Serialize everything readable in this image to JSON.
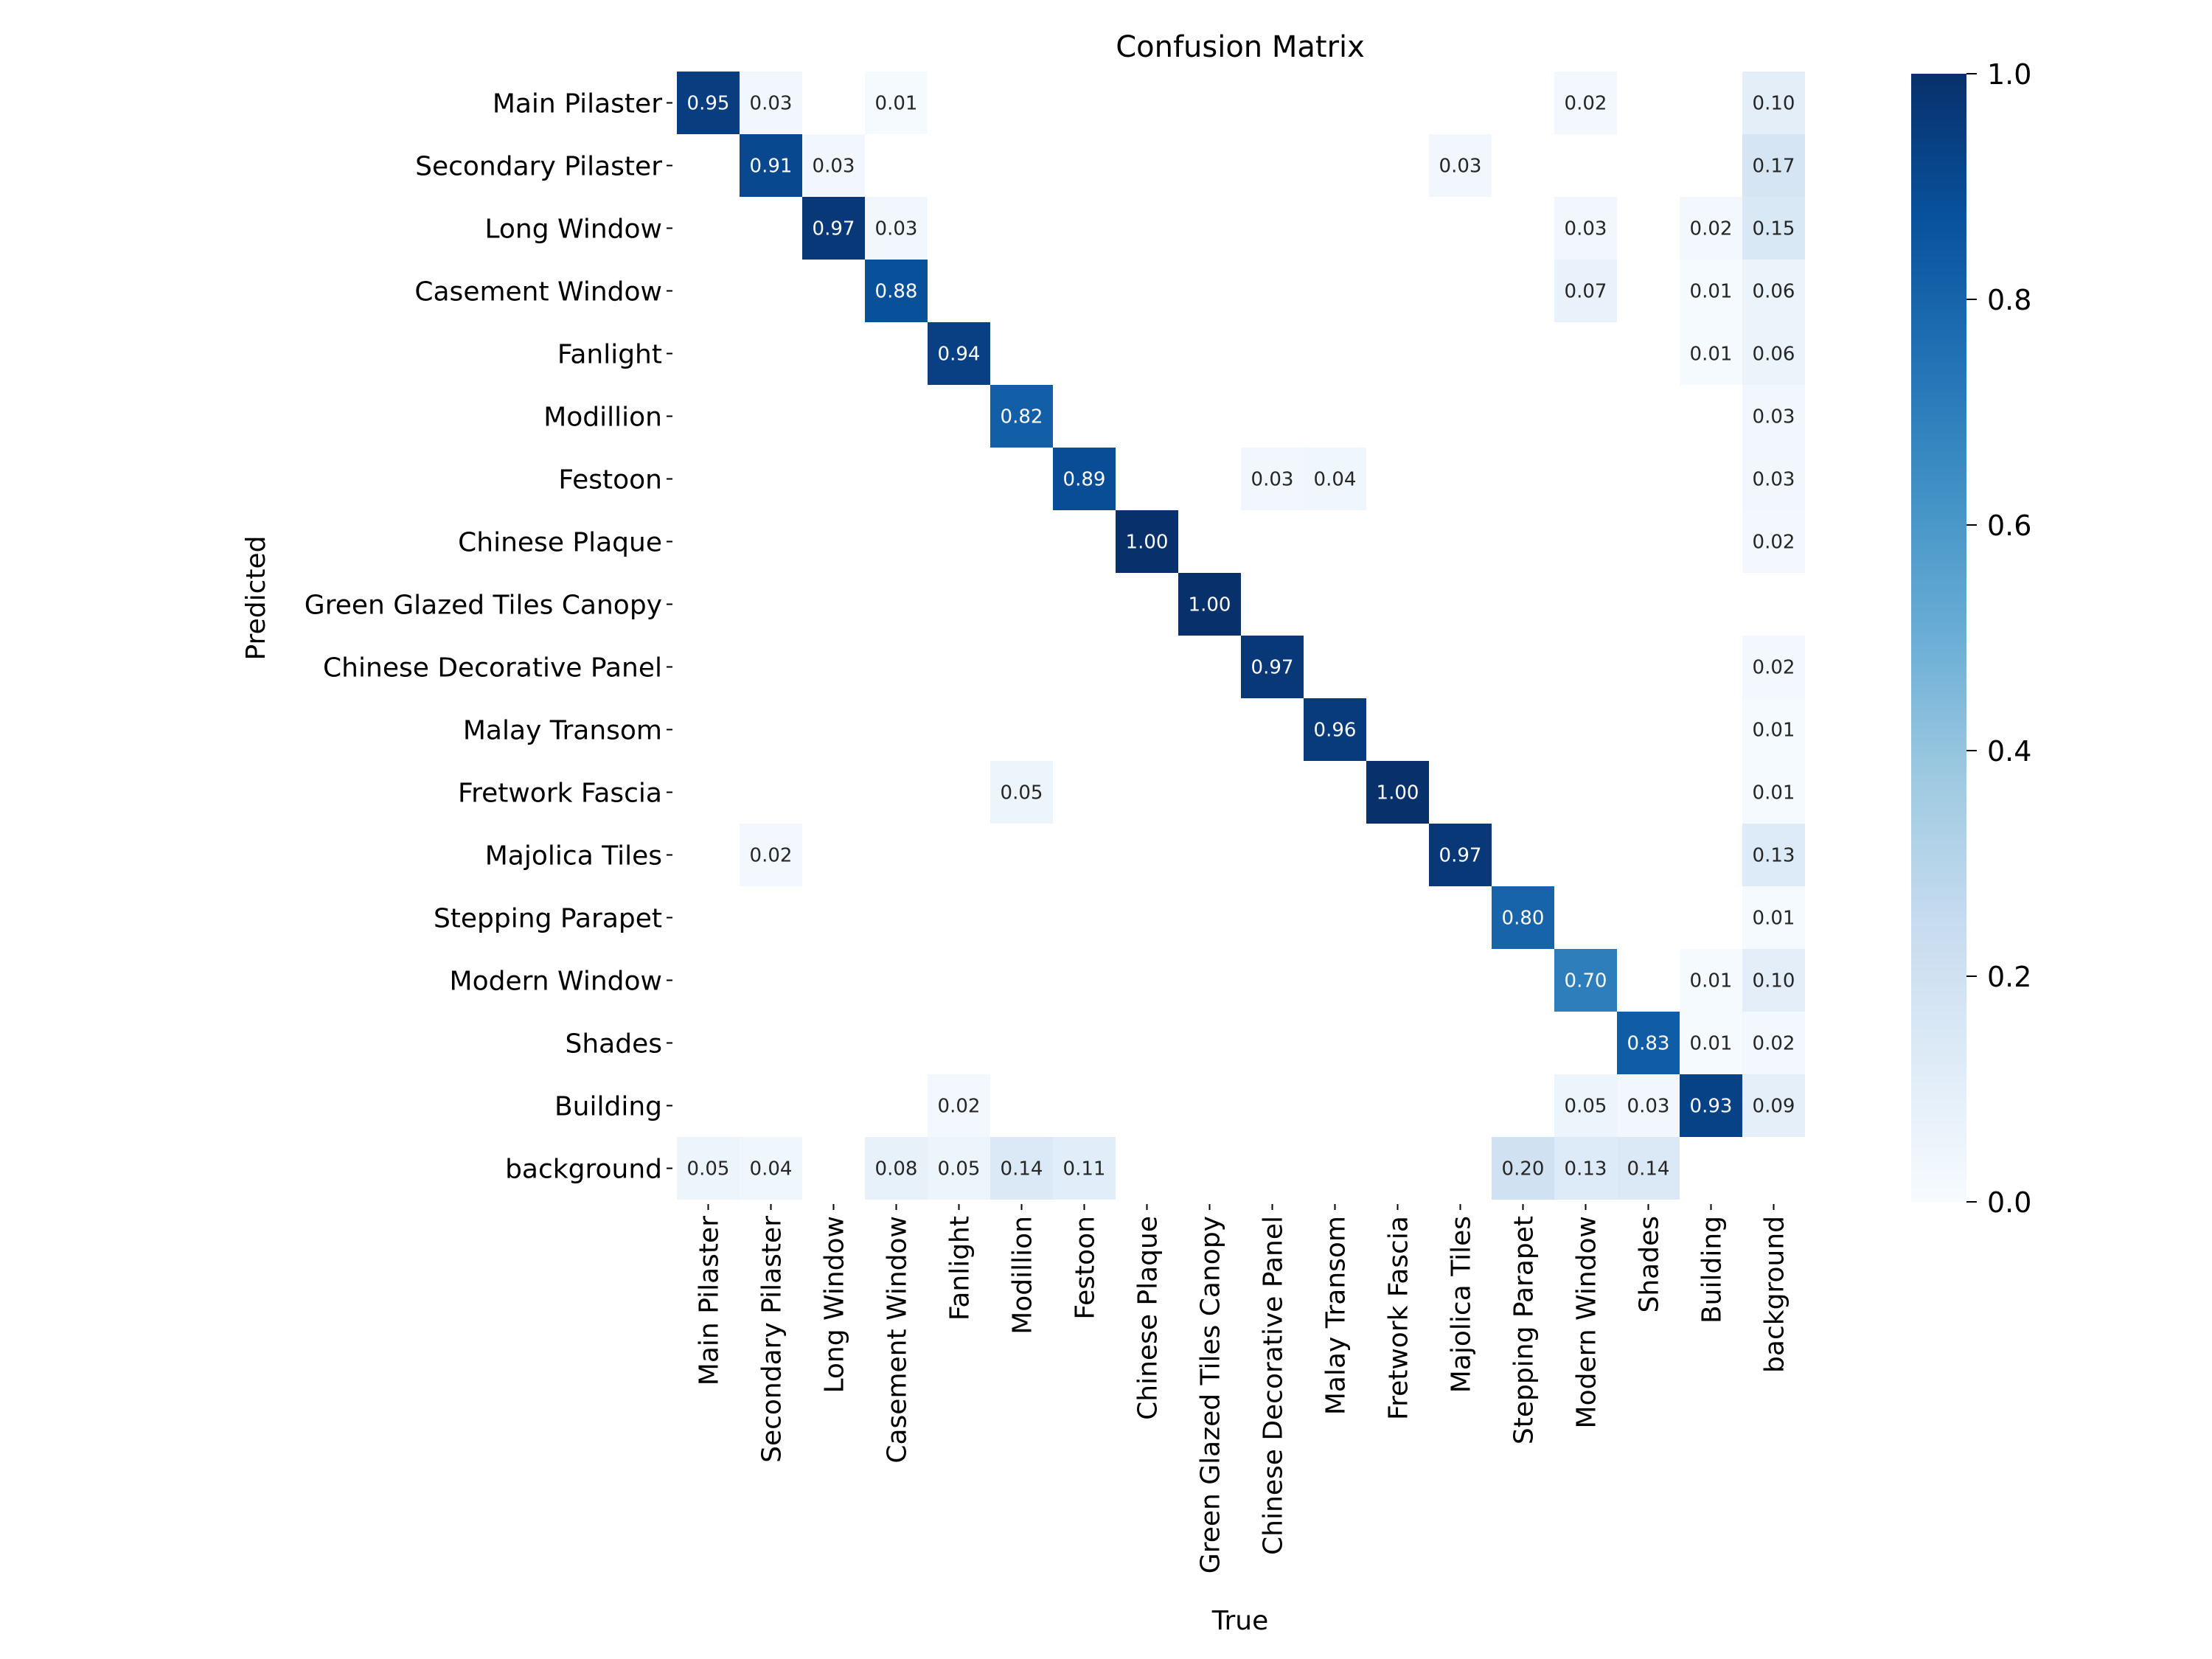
{
  "chart_data": {
    "type": "heatmap",
    "title": "Confusion Matrix",
    "xlabel": "True",
    "ylabel": "Predicted",
    "x_categories": [
      "Main Pilaster",
      "Secondary Pilaster",
      "Long Window",
      "Casement Window",
      "Fanlight",
      "Modillion",
      "Festoon",
      "Chinese Plaque",
      "Green Glazed Tiles Canopy",
      "Chinese Decorative Panel",
      "Malay Transom",
      "Fretwork Fascia",
      "Majolica Tiles",
      "Stepping Parapet",
      "Modern Window",
      "Shades",
      "Building",
      "background"
    ],
    "y_categories": [
      "Main Pilaster",
      "Secondary Pilaster",
      "Long Window",
      "Casement Window",
      "Fanlight",
      "Modillion",
      "Festoon",
      "Chinese Plaque",
      "Green Glazed Tiles Canopy",
      "Chinese Decorative Panel",
      "Malay Transom",
      "Fretwork Fascia",
      "Majolica Tiles",
      "Stepping Parapet",
      "Modern Window",
      "Shades",
      "Building",
      "background"
    ],
    "values": [
      [
        0.95,
        0.03,
        null,
        0.01,
        null,
        null,
        null,
        null,
        null,
        null,
        null,
        null,
        null,
        null,
        0.02,
        null,
        null,
        0.1
      ],
      [
        null,
        0.91,
        0.03,
        null,
        null,
        null,
        null,
        null,
        null,
        null,
        null,
        null,
        0.03,
        null,
        null,
        null,
        null,
        0.17
      ],
      [
        null,
        null,
        0.97,
        0.03,
        null,
        null,
        null,
        null,
        null,
        null,
        null,
        null,
        null,
        null,
        0.03,
        null,
        0.02,
        0.15
      ],
      [
        null,
        null,
        null,
        0.88,
        null,
        null,
        null,
        null,
        null,
        null,
        null,
        null,
        null,
        null,
        0.07,
        null,
        0.01,
        0.06
      ],
      [
        null,
        null,
        null,
        null,
        0.94,
        null,
        null,
        null,
        null,
        null,
        null,
        null,
        null,
        null,
        null,
        null,
        0.01,
        0.06
      ],
      [
        null,
        null,
        null,
        null,
        null,
        0.82,
        null,
        null,
        null,
        null,
        null,
        null,
        null,
        null,
        null,
        null,
        null,
        0.03
      ],
      [
        null,
        null,
        null,
        null,
        null,
        null,
        0.89,
        null,
        null,
        0.03,
        0.04,
        null,
        null,
        null,
        null,
        null,
        null,
        0.03
      ],
      [
        null,
        null,
        null,
        null,
        null,
        null,
        null,
        1.0,
        null,
        null,
        null,
        null,
        null,
        null,
        null,
        null,
        null,
        0.02
      ],
      [
        null,
        null,
        null,
        null,
        null,
        null,
        null,
        null,
        1.0,
        null,
        null,
        null,
        null,
        null,
        null,
        null,
        null,
        null
      ],
      [
        null,
        null,
        null,
        null,
        null,
        null,
        null,
        null,
        null,
        0.97,
        null,
        null,
        null,
        null,
        null,
        null,
        null,
        0.02
      ],
      [
        null,
        null,
        null,
        null,
        null,
        null,
        null,
        null,
        null,
        null,
        0.96,
        null,
        null,
        null,
        null,
        null,
        null,
        0.01
      ],
      [
        null,
        null,
        null,
        null,
        null,
        0.05,
        null,
        null,
        null,
        null,
        null,
        1.0,
        null,
        null,
        null,
        null,
        null,
        0.01
      ],
      [
        null,
        0.02,
        null,
        null,
        null,
        null,
        null,
        null,
        null,
        null,
        null,
        null,
        0.97,
        null,
        null,
        null,
        null,
        0.13
      ],
      [
        null,
        null,
        null,
        null,
        null,
        null,
        null,
        null,
        null,
        null,
        null,
        null,
        null,
        0.8,
        null,
        null,
        null,
        0.01
      ],
      [
        null,
        null,
        null,
        null,
        null,
        null,
        null,
        null,
        null,
        null,
        null,
        null,
        null,
        null,
        0.7,
        null,
        0.01,
        0.1
      ],
      [
        null,
        null,
        null,
        null,
        null,
        null,
        null,
        null,
        null,
        null,
        null,
        null,
        null,
        null,
        null,
        0.83,
        0.01,
        0.02
      ],
      [
        null,
        null,
        null,
        null,
        0.02,
        null,
        null,
        null,
        null,
        null,
        null,
        null,
        null,
        null,
        0.05,
        0.03,
        0.93,
        0.09
      ],
      [
        0.05,
        0.04,
        null,
        0.08,
        0.05,
        0.14,
        0.11,
        null,
        null,
        null,
        null,
        null,
        null,
        0.2,
        0.13,
        0.14,
        null,
        null
      ]
    ],
    "value_range": [
      0.0,
      1.0
    ],
    "colormap": "Blues",
    "colorbar_ticks": [
      "0.0",
      "0.2",
      "0.4",
      "0.6",
      "0.8",
      "1.0"
    ],
    "grid": false,
    "legend": "colorbar-right"
  }
}
